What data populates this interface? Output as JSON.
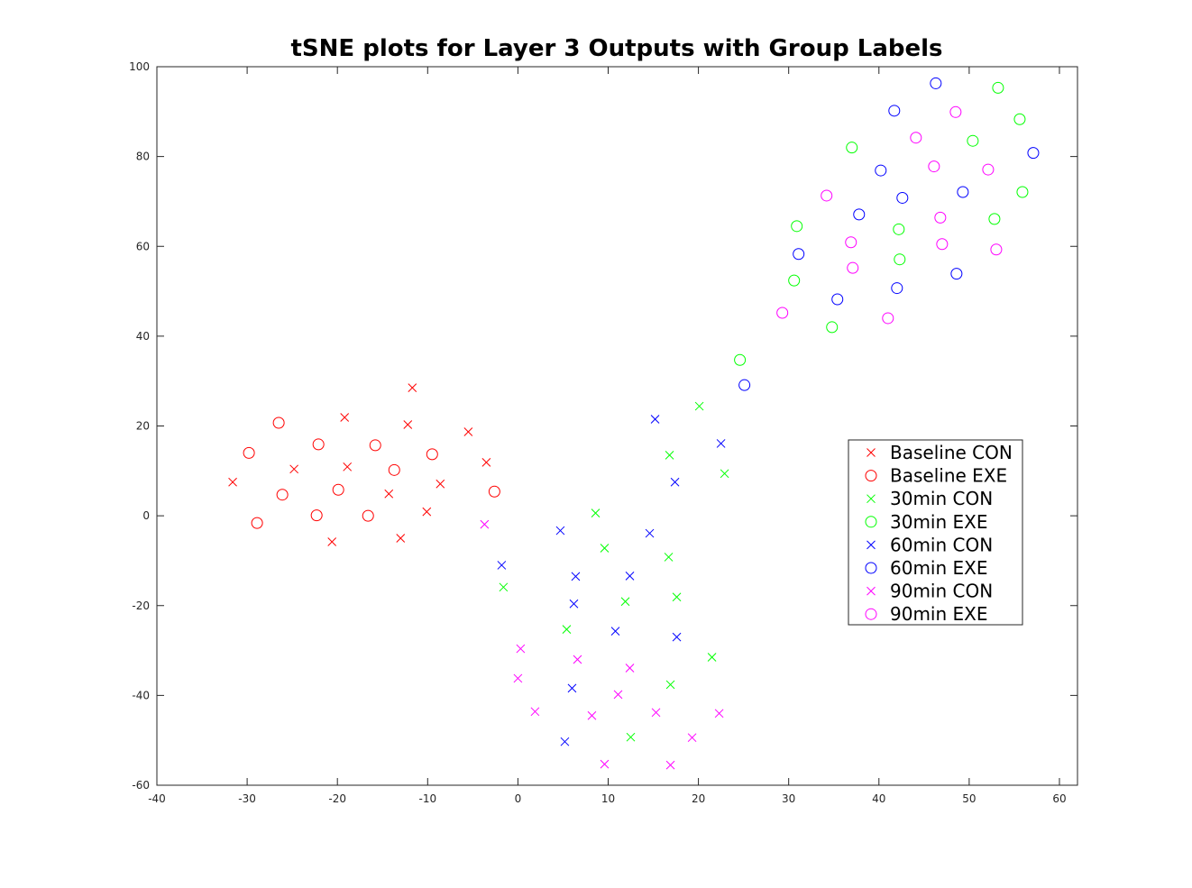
{
  "chart_data": {
    "type": "scatter",
    "title": "tSNE plots for Layer 3 Outputs with Group Labels",
    "xlabel": "",
    "ylabel": "",
    "xlim": [
      -40,
      62
    ],
    "ylim": [
      -60,
      100
    ],
    "xticks": [
      -40,
      -30,
      -20,
      -10,
      0,
      10,
      20,
      30,
      40,
      50,
      60
    ],
    "yticks": [
      -60,
      -40,
      -20,
      0,
      20,
      40,
      60,
      80,
      100
    ],
    "grid": false,
    "legend_position": "right",
    "series": [
      {
        "name": "Baseline CON",
        "marker": "x",
        "color": "#ff0000",
        "points": [
          [
            -31.6,
            7.5
          ],
          [
            -24.8,
            10.4
          ],
          [
            -19.2,
            21.9
          ],
          [
            -18.9,
            10.9
          ],
          [
            -20.6,
            -5.8
          ],
          [
            -14.3,
            4.9
          ],
          [
            -13.0,
            -5.0
          ],
          [
            -12.2,
            20.3
          ],
          [
            -11.7,
            28.5
          ],
          [
            -10.1,
            0.9
          ],
          [
            -8.6,
            7.1
          ],
          [
            -5.5,
            18.7
          ],
          [
            -3.5,
            11.9
          ]
        ]
      },
      {
        "name": "Baseline EXE",
        "marker": "o",
        "color": "#ff0000",
        "points": [
          [
            -29.8,
            14.0
          ],
          [
            -28.9,
            -1.6
          ],
          [
            -26.5,
            20.7
          ],
          [
            -26.1,
            4.7
          ],
          [
            -22.1,
            15.9
          ],
          [
            -22.3,
            0.1
          ],
          [
            -19.9,
            5.8
          ],
          [
            -16.6,
            0.0
          ],
          [
            -15.8,
            15.7
          ],
          [
            -13.7,
            10.2
          ],
          [
            -9.5,
            13.7
          ],
          [
            -2.6,
            5.4
          ]
        ]
      },
      {
        "name": "30min CON",
        "marker": "x",
        "color": "#00ff00",
        "points": [
          [
            -1.6,
            -15.9
          ],
          [
            5.4,
            -25.3
          ],
          [
            8.6,
            0.6
          ],
          [
            9.6,
            -7.2
          ],
          [
            11.9,
            -19.1
          ],
          [
            12.5,
            -49.3
          ],
          [
            16.7,
            -9.2
          ],
          [
            16.8,
            13.5
          ],
          [
            16.9,
            -37.6
          ],
          [
            17.6,
            -18.1
          ],
          [
            20.1,
            24.4
          ],
          [
            21.5,
            -31.5
          ],
          [
            22.9,
            9.4
          ]
        ]
      },
      {
        "name": "30min EXE",
        "marker": "o",
        "color": "#00ff00",
        "points": [
          [
            24.6,
            34.7
          ],
          [
            30.6,
            52.4
          ],
          [
            30.9,
            64.5
          ],
          [
            34.8,
            42.0
          ],
          [
            37.0,
            82.0
          ],
          [
            42.2,
            63.8
          ],
          [
            42.3,
            57.1
          ],
          [
            50.4,
            83.5
          ],
          [
            52.8,
            66.1
          ],
          [
            53.2,
            95.3
          ],
          [
            55.6,
            88.3
          ],
          [
            55.9,
            72.1
          ]
        ]
      },
      {
        "name": "60min CON",
        "marker": "x",
        "color": "#0000ff",
        "points": [
          [
            -1.8,
            -11.0
          ],
          [
            4.7,
            -3.3
          ],
          [
            5.2,
            -50.3
          ],
          [
            6.0,
            -38.4
          ],
          [
            6.2,
            -19.6
          ],
          [
            6.4,
            -13.5
          ],
          [
            10.8,
            -25.7
          ],
          [
            12.4,
            -13.4
          ],
          [
            14.6,
            -3.9
          ],
          [
            15.2,
            21.5
          ],
          [
            17.4,
            7.5
          ],
          [
            17.6,
            -27.0
          ],
          [
            22.5,
            16.1
          ]
        ]
      },
      {
        "name": "60min EXE",
        "marker": "o",
        "color": "#0000ff",
        "points": [
          [
            25.1,
            29.1
          ],
          [
            31.1,
            58.3
          ],
          [
            35.4,
            48.2
          ],
          [
            37.8,
            67.1
          ],
          [
            40.2,
            76.9
          ],
          [
            41.7,
            90.2
          ],
          [
            42.0,
            50.7
          ],
          [
            42.6,
            70.8
          ],
          [
            46.3,
            96.3
          ],
          [
            48.6,
            53.9
          ],
          [
            49.3,
            72.1
          ],
          [
            57.1,
            80.8
          ]
        ]
      },
      {
        "name": "90min CON",
        "marker": "x",
        "color": "#ff00ff",
        "points": [
          [
            -3.7,
            -1.9
          ],
          [
            0.0,
            -36.2
          ],
          [
            0.3,
            -29.6
          ],
          [
            1.9,
            -43.6
          ],
          [
            6.6,
            -32.0
          ],
          [
            8.2,
            -44.5
          ],
          [
            9.6,
            -55.3
          ],
          [
            11.1,
            -39.8
          ],
          [
            12.4,
            -33.9
          ],
          [
            15.3,
            -43.8
          ],
          [
            16.9,
            -55.5
          ],
          [
            19.3,
            -49.4
          ],
          [
            22.3,
            -44.0
          ]
        ]
      },
      {
        "name": "90min EXE",
        "marker": "o",
        "color": "#ff00ff",
        "points": [
          [
            29.3,
            45.2
          ],
          [
            34.2,
            71.3
          ],
          [
            36.9,
            60.9
          ],
          [
            37.1,
            55.2
          ],
          [
            41.0,
            44.0
          ],
          [
            44.1,
            84.2
          ],
          [
            46.1,
            77.8
          ],
          [
            46.8,
            66.4
          ],
          [
            47.0,
            60.5
          ],
          [
            48.5,
            89.9
          ],
          [
            52.1,
            77.1
          ],
          [
            53.0,
            59.3
          ]
        ]
      }
    ]
  }
}
